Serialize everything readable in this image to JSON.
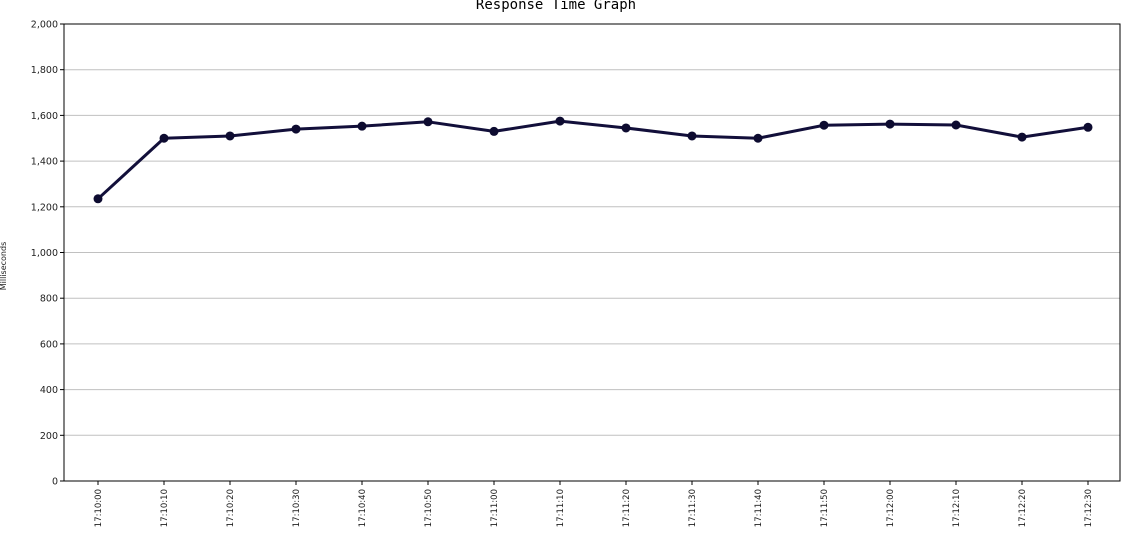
{
  "chart_data": {
    "type": "line",
    "title": "Response Time Graph",
    "xlabel": "",
    "ylabel": "Milliseconds",
    "categories": [
      "17:10:00",
      "17:10:10",
      "17:10:20",
      "17:10:30",
      "17:10:40",
      "17:10:50",
      "17:11:00",
      "17:11:10",
      "17:11:20",
      "17:11:30",
      "17:11:40",
      "17:11:50",
      "17:12:00",
      "17:12:10",
      "17:12:20",
      "17:12:30"
    ],
    "series": [
      {
        "values": [
          1235,
          1500,
          1510,
          1540,
          1553,
          1572,
          1530,
          1575,
          1545,
          1510,
          1500,
          1557,
          1562,
          1558,
          1505,
          1548
        ]
      }
    ],
    "ylim": [
      0,
      2000
    ],
    "yticks": [
      0,
      200,
      400,
      600,
      800,
      1000,
      1200,
      1400,
      1600,
      1800,
      2000
    ],
    "ytick_labels": [
      "0",
      "200",
      "400",
      "600",
      "800",
      "1,000",
      "1,200",
      "1,400",
      "1,600",
      "1,800",
      "2,000"
    ],
    "grid": true,
    "legend": "none",
    "colors": {
      "line": "#120f3a",
      "marker": "#0d0b30",
      "grid": "#c0c0c0",
      "frame": "#000000"
    }
  }
}
